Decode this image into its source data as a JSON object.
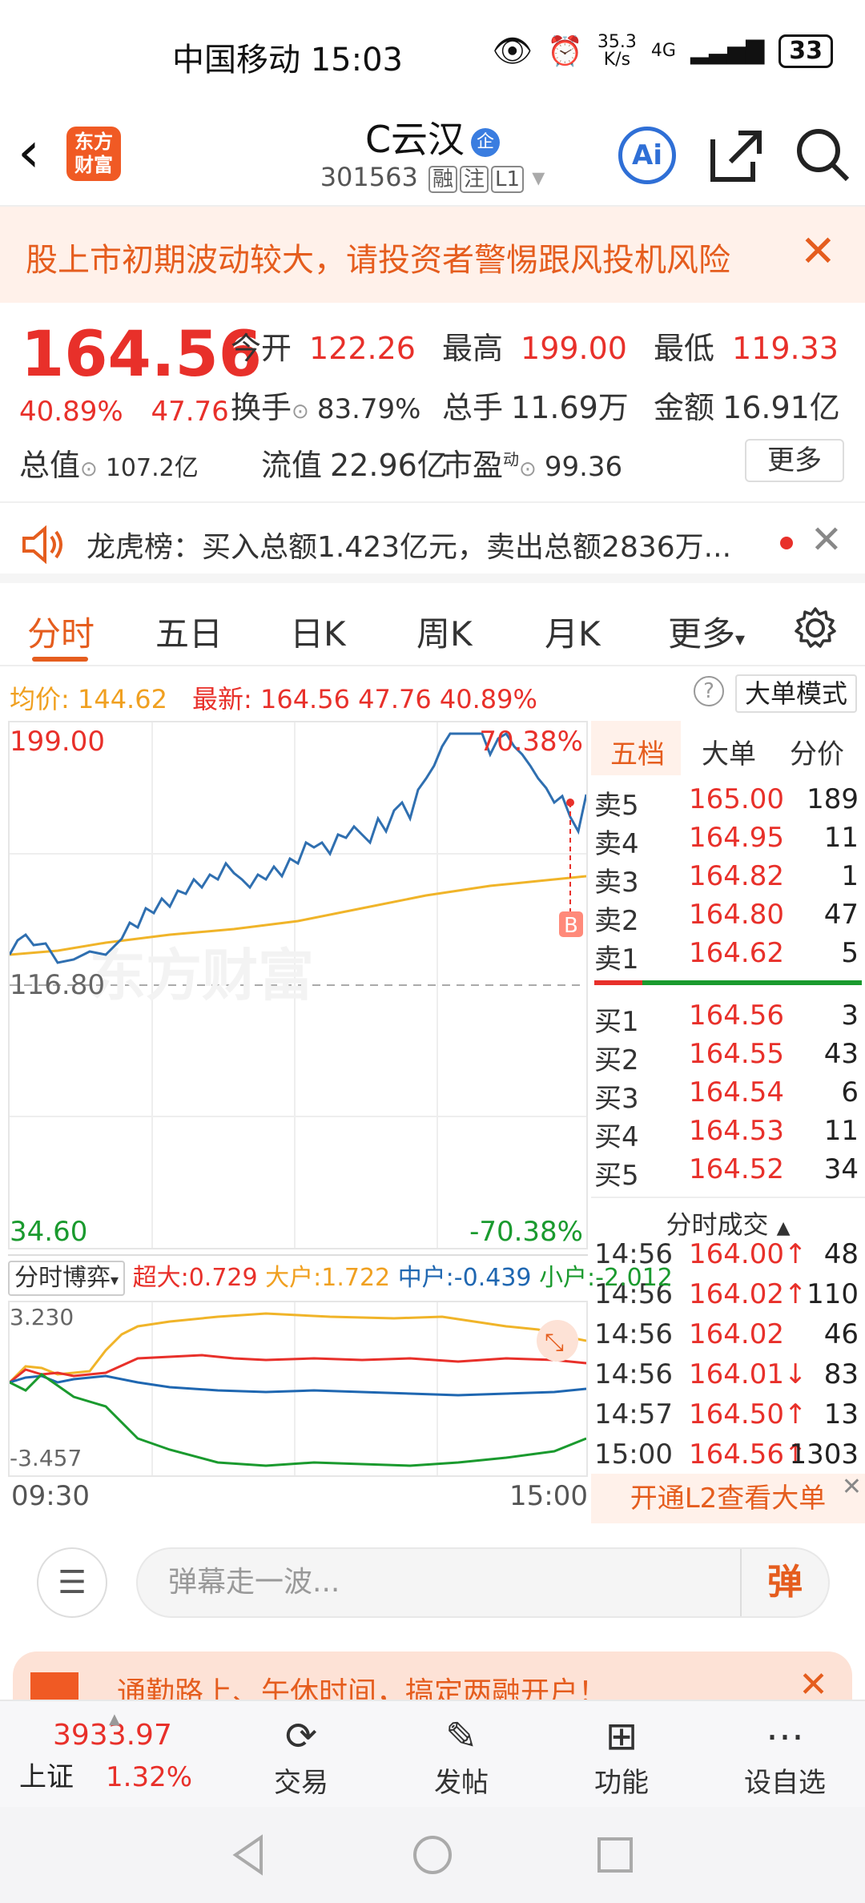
{
  "status": {
    "carrier": "中国移动",
    "time": "15:03",
    "speed_top": "35.3",
    "speed_bottom": "K/s",
    "network": "4G",
    "battery": "33"
  },
  "nav": {
    "title": "C云汉",
    "qi_badge": "企",
    "code": "301563",
    "tags": [
      "融",
      "注",
      "L1"
    ],
    "logo_line1": "东方",
    "logo_line2": "财富",
    "ai": "Ai"
  },
  "warning": {
    "text": "股上市初期波动较大，请投资者警惕跟风投机风险"
  },
  "quote": {
    "price": "164.56",
    "change_pct": "40.89%",
    "change": "47.76",
    "open_label": "今开",
    "open": "122.26",
    "high_label": "最高",
    "high": "199.00",
    "low_label": "最低",
    "low": "119.33",
    "turnover_label": "换手",
    "turnover": "83.79%",
    "volume_label": "总手",
    "volume": "11.69万",
    "amount_label": "金额",
    "amount": "16.91亿",
    "mktcap_label": "总值",
    "mktcap": "107.2亿",
    "float_label": "流值",
    "float": "22.96亿",
    "pe_label": "市盈",
    "pe_sup": "动",
    "pe": "99.36",
    "more": "更多"
  },
  "dragon": {
    "text": "龙虎榜：买入总额1.423亿元，卖出总额2836万..."
  },
  "tabs": [
    "分时",
    "五日",
    "日K",
    "周K",
    "月K",
    "更多"
  ],
  "avgbar": {
    "avg_label": "均价:",
    "avg": "144.62",
    "latest_label": "最新:",
    "latest": "164.56",
    "chg": "47.76",
    "pct": "40.89%",
    "mode_button": "大单模式"
  },
  "chart_labels": {
    "top_left": "199.00",
    "top_right": "70.38%",
    "mid": "116.80",
    "bottom_left": "34.60",
    "bottom_right": "-70.38%",
    "marker": "B",
    "watermark": "东方财富"
  },
  "book": {
    "tabs": [
      "五档",
      "大单",
      "分价"
    ],
    "sell": [
      {
        "l": "卖5",
        "p": "165.00",
        "q": "189"
      },
      {
        "l": "卖4",
        "p": "164.95",
        "q": "11"
      },
      {
        "l": "卖3",
        "p": "164.82",
        "q": "1"
      },
      {
        "l": "卖2",
        "p": "164.80",
        "q": "47"
      },
      {
        "l": "卖1",
        "p": "164.62",
        "q": "5"
      }
    ],
    "buy": [
      {
        "l": "买1",
        "p": "164.56",
        "q": "3"
      },
      {
        "l": "买2",
        "p": "164.55",
        "q": "43"
      },
      {
        "l": "买3",
        "p": "164.54",
        "q": "6"
      },
      {
        "l": "买4",
        "p": "164.53",
        "q": "11"
      },
      {
        "l": "买5",
        "p": "164.52",
        "q": "34"
      }
    ],
    "trades_title": "分时成交",
    "trades": [
      {
        "t": "14:56",
        "p": "164.00↑",
        "q": "48"
      },
      {
        "t": "14:56",
        "p": "164.02↑",
        "q": "110"
      },
      {
        "t": "14:56",
        "p": "164.02",
        "q": "46"
      },
      {
        "t": "14:56",
        "p": "164.01↓",
        "q": "83"
      },
      {
        "t": "14:57",
        "p": "164.50↑",
        "q": "13"
      },
      {
        "t": "15:00",
        "p": "164.56↑",
        "q": "1303"
      }
    ],
    "l2": "开通L2查看大单"
  },
  "flow": {
    "selector": "分时博弈",
    "super_label": "超大:",
    "super": "0.729",
    "big_label": "大户:",
    "big": "1.722",
    "mid_label": "中户:",
    "mid": "-0.439",
    "small_label": "小户:",
    "small": "-2.012",
    "top": "3.230",
    "bottom": "-3.457"
  },
  "times": {
    "start": "09:30",
    "end": "15:00"
  },
  "danmu": {
    "placeholder": "弹幕走一波...",
    "button": "弹"
  },
  "promo": {
    "text": "通勤路上、午休时间，搞定两融开户！"
  },
  "bottom": {
    "index_value": "3933.97",
    "index_name": "上证",
    "index_pct": "1.32%",
    "items": [
      "交易",
      "发帖",
      "功能",
      "设自选"
    ]
  },
  "colors": {
    "up": "#e8302a",
    "down": "#1a9a2e",
    "accent": "#e55d1e",
    "price_line": "#2f6fb0",
    "avg_line": "#f0b429"
  }
}
